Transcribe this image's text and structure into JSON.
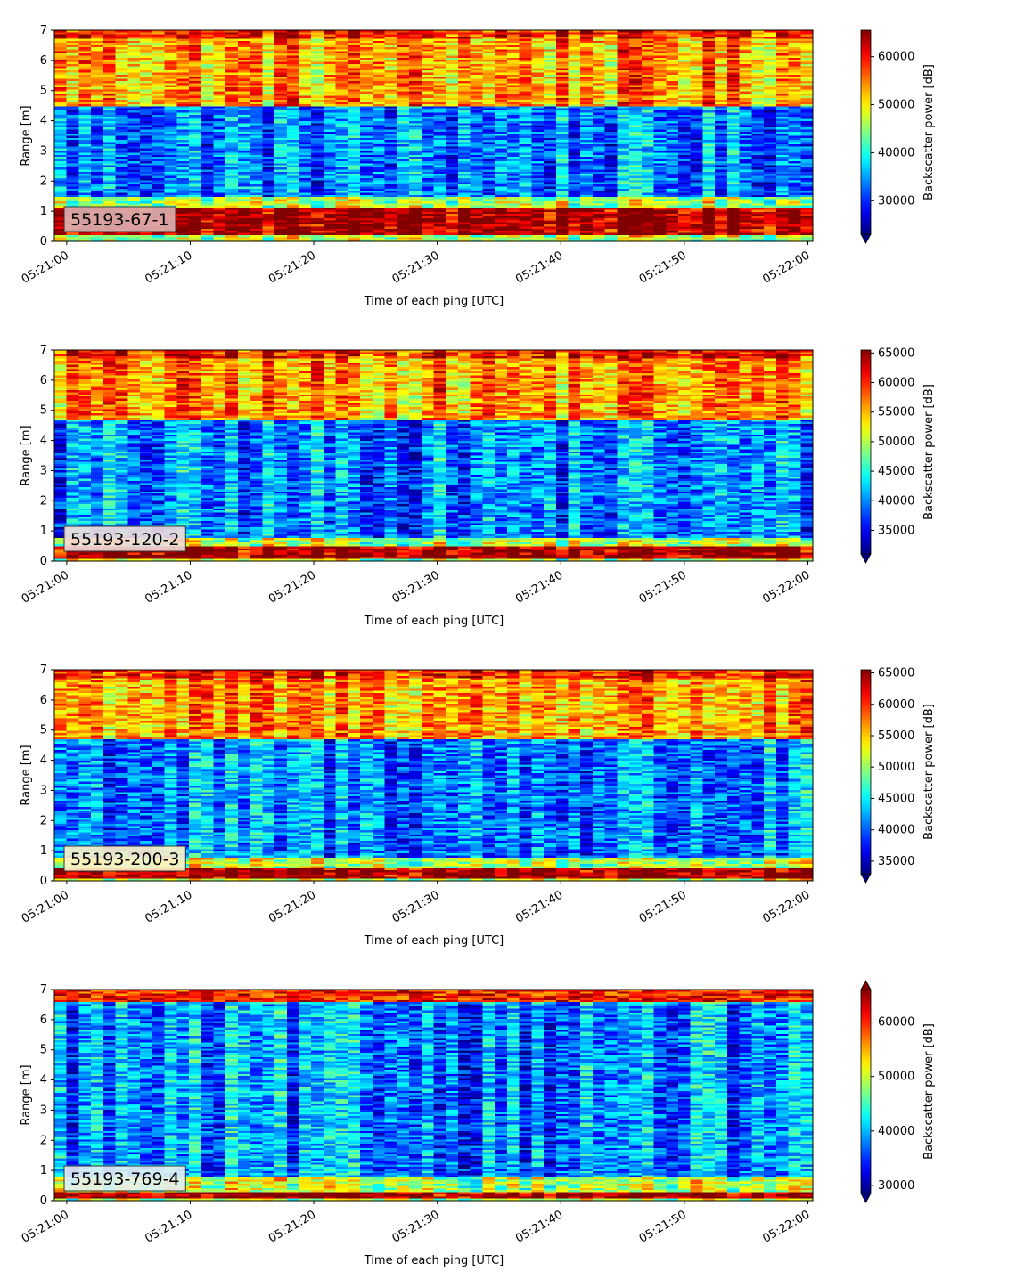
{
  "chart_data": [
    {
      "type": "heatmap",
      "label": "55193-67-1",
      "xlabel": "Time of each ping [UTC]",
      "ylabel": "Range [m]",
      "xticks": [
        "05:21:00",
        "05:21:10",
        "05:21:20",
        "05:21:30",
        "05:21:40",
        "05:21:50",
        "05:22:00"
      ],
      "xlim_seconds": [
        -1,
        60.4
      ],
      "ylim": [
        0,
        7
      ],
      "yticks": [
        0,
        1,
        2,
        3,
        4,
        5,
        6,
        7
      ],
      "colorbar": {
        "label": "Backscatter power [dB]",
        "vmin": 23000,
        "vmax": 65500,
        "ticks": [
          30000,
          40000,
          50000,
          60000
        ],
        "extend": "min"
      },
      "profile_description": {
        "dense_bottom_band": [
          0.2,
          1.1
        ],
        "low_band": [
          1.5,
          4.5
        ],
        "high_band": [
          4.5,
          7.0
        ]
      }
    },
    {
      "type": "heatmap",
      "label": "55193-120-2",
      "xlabel": "Time of each ping [UTC]",
      "ylabel": "Range [m]",
      "xticks": [
        "05:21:00",
        "05:21:10",
        "05:21:20",
        "05:21:30",
        "05:21:40",
        "05:21:50",
        "05:22:00"
      ],
      "xlim_seconds": [
        -1,
        60.4
      ],
      "ylim": [
        0,
        7
      ],
      "yticks": [
        0,
        1,
        2,
        3,
        4,
        5,
        6,
        7
      ],
      "colorbar": {
        "label": "Backscatter power [dB]",
        "vmin": 31000,
        "vmax": 65500,
        "ticks": [
          35000,
          40000,
          45000,
          50000,
          55000,
          60000,
          65000
        ],
        "extend": "min"
      },
      "profile_description": {
        "dense_bottom_band": [
          0.1,
          0.5
        ],
        "low_band": [
          0.8,
          4.7
        ],
        "high_band": [
          4.8,
          7.0
        ]
      }
    },
    {
      "type": "heatmap",
      "label": "55193-200-3",
      "xlabel": "Time of each ping [UTC]",
      "ylabel": "Range [m]",
      "xticks": [
        "05:21:00",
        "05:21:10",
        "05:21:20",
        "05:21:30",
        "05:21:40",
        "05:21:50",
        "05:22:00"
      ],
      "xlim_seconds": [
        -1,
        60.4
      ],
      "ylim": [
        0,
        7
      ],
      "yticks": [
        0,
        1,
        2,
        3,
        4,
        5,
        6,
        7
      ],
      "colorbar": {
        "label": "Backscatter power [dB]",
        "vmin": 33000,
        "vmax": 65500,
        "ticks": [
          35000,
          40000,
          45000,
          50000,
          55000,
          60000,
          65000
        ],
        "extend": "min"
      },
      "profile_description": {
        "dense_bottom_band": [
          0.1,
          0.4
        ],
        "low_band": [
          0.8,
          4.7
        ],
        "high_band": [
          4.8,
          7.0
        ]
      }
    },
    {
      "type": "heatmap",
      "label": "55193-769-4",
      "xlabel": "Time of each ping [UTC]",
      "ylabel": "Range [m]",
      "xticks": [
        "05:21:00",
        "05:21:10",
        "05:21:20",
        "05:21:30",
        "05:21:40",
        "05:21:50",
        "05:22:00"
      ],
      "xlim_seconds": [
        -1,
        60.4
      ],
      "ylim": [
        0,
        7
      ],
      "yticks": [
        0,
        1,
        2,
        3,
        4,
        5,
        6,
        7
      ],
      "colorbar": {
        "label": "Backscatter power [dB]",
        "vmin": 28500,
        "vmax": 66000,
        "ticks": [
          30000,
          40000,
          50000,
          60000
        ],
        "extend": "both"
      },
      "profile_description": {
        "dense_bottom_band": [
          0.1,
          0.3
        ],
        "low_band": [
          0.8,
          6.5
        ],
        "high_band": [
          6.6,
          7.0
        ]
      }
    }
  ]
}
